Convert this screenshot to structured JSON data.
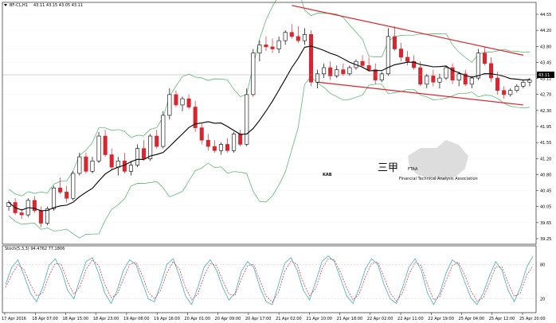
{
  "chart_data": {
    "type": "candlestick",
    "symbol_label": "BF-CL,H1",
    "ohlc_label": "43.11 43.15 43.05 43.11",
    "current_price": "43.11",
    "colors": {
      "bull": "#000000",
      "bear": "#d7262e",
      "ma": "#000000",
      "bands": "#4daf66",
      "channel": "#d7262e",
      "stoch_main": "#48aab8",
      "stoch_signal": "#d7262e"
    },
    "y_ticks": [
      "44.55",
      "44.20",
      "43.80",
      "43.45",
      "43.12",
      "42.70",
      "42.30",
      "41.95",
      "41.55",
      "41.20",
      "40.80",
      "40.45",
      "40.05",
      "39.65",
      "39.25"
    ],
    "ylim": [
      39.25,
      44.85
    ],
    "x_labels": [
      "17 Apr 2016",
      "18 Apr 07:00",
      "18 Apr 15:00",
      "18 Apr 23:00",
      "19 Apr 08:00",
      "19 Apr 16:00",
      "20 Apr 01:00",
      "20 Apr 09:00",
      "20 Apr 17:00",
      "21 Apr 02:00",
      "21 Apr 10:00",
      "21 Apr 18:00",
      "22 Apr 02:00",
      "22 Apr 11:00",
      "22 Apr 19:00",
      "25 Apr 04:00",
      "25 Apr 12:00",
      "25 Apr 20:00"
    ],
    "oscillator": {
      "label": "Stoch(5,3,3) 94.4762 77.1806",
      "y_ticks": [
        "80",
        "20"
      ],
      "ylim": [
        0,
        100
      ],
      "main": [
        45,
        75,
        88,
        60,
        30,
        15,
        40,
        78,
        90,
        70,
        35,
        20,
        55,
        85,
        92,
        65,
        30,
        12,
        35,
        70,
        88,
        80,
        50,
        20,
        15,
        45,
        80,
        90,
        60,
        25,
        10,
        40,
        75,
        88,
        70,
        40,
        18,
        30,
        68,
        85,
        75,
        40,
        15,
        10,
        45,
        82,
        92,
        70,
        35,
        18,
        50,
        85,
        95,
        85,
        55,
        25,
        12,
        38,
        72,
        90,
        80,
        45,
        20,
        12,
        40,
        75,
        90,
        70,
        30,
        10,
        30,
        65,
        88,
        80,
        50,
        22,
        10,
        30,
        60,
        85,
        70,
        35,
        15,
        40,
        75,
        94
      ],
      "signal": [
        40,
        62,
        80,
        70,
        45,
        25,
        30,
        60,
        82,
        80,
        50,
        28,
        42,
        72,
        88,
        78,
        45,
        22,
        28,
        55,
        80,
        84,
        62,
        32,
        20,
        35,
        65,
        85,
        72,
        40,
        18,
        28,
        60,
        82,
        78,
        52,
        28,
        26,
        55,
        78,
        80,
        52,
        25,
        14,
        32,
        68,
        86,
        80,
        48,
        25,
        38,
        72,
        90,
        88,
        66,
        38,
        18,
        28,
        58,
        82,
        84,
        58,
        30,
        16,
        30,
        62,
        84,
        78,
        45,
        18,
        24,
        52,
        78,
        84,
        62,
        34,
        16,
        22,
        48,
        76,
        76,
        48,
        24,
        30,
        62,
        77
      ]
    },
    "candles": [
      [
        40.1,
        40.25,
        40.0,
        40.2
      ],
      [
        40.2,
        40.3,
        39.9,
        39.95
      ],
      [
        39.95,
        40.05,
        39.8,
        39.9
      ],
      [
        39.9,
        40.3,
        39.85,
        40.25
      ],
      [
        40.25,
        40.35,
        39.95,
        40.0
      ],
      [
        40.0,
        40.1,
        39.6,
        39.7
      ],
      [
        39.7,
        40.1,
        39.65,
        40.05
      ],
      [
        40.05,
        40.6,
        40.0,
        40.55
      ],
      [
        40.55,
        40.8,
        40.4,
        40.45
      ],
      [
        40.45,
        40.6,
        40.2,
        40.3
      ],
      [
        40.3,
        40.95,
        40.25,
        40.9
      ],
      [
        40.9,
        41.4,
        40.85,
        41.3
      ],
      [
        41.3,
        41.4,
        40.9,
        40.95
      ],
      [
        40.95,
        41.3,
        40.9,
        41.2
      ],
      [
        41.2,
        41.9,
        41.15,
        41.8
      ],
      [
        41.8,
        41.95,
        41.3,
        41.35
      ],
      [
        41.35,
        41.5,
        41.0,
        41.05
      ],
      [
        41.05,
        41.3,
        40.85,
        41.2
      ],
      [
        41.2,
        41.4,
        40.9,
        40.95
      ],
      [
        40.95,
        41.2,
        40.85,
        41.1
      ],
      [
        41.1,
        41.6,
        41.05,
        41.5
      ],
      [
        41.5,
        41.7,
        41.2,
        41.25
      ],
      [
        41.25,
        41.85,
        41.2,
        41.8
      ],
      [
        41.8,
        41.95,
        41.5,
        41.55
      ],
      [
        41.55,
        42.4,
        41.5,
        42.3
      ],
      [
        42.3,
        42.95,
        42.2,
        42.8
      ],
      [
        42.8,
        42.9,
        42.5,
        42.55
      ],
      [
        42.55,
        42.75,
        42.4,
        42.7
      ],
      [
        42.7,
        42.8,
        42.45,
        42.5
      ],
      [
        42.5,
        42.65,
        41.9,
        42.0
      ],
      [
        42.0,
        42.1,
        41.6,
        41.7
      ],
      [
        41.7,
        41.85,
        41.45,
        41.55
      ],
      [
        41.55,
        41.7,
        41.4,
        41.45
      ],
      [
        41.45,
        41.65,
        41.35,
        41.6
      ],
      [
        41.6,
        41.75,
        41.4,
        41.45
      ],
      [
        41.45,
        41.9,
        41.4,
        41.85
      ],
      [
        41.85,
        41.95,
        41.55,
        41.6
      ],
      [
        41.6,
        42.95,
        41.55,
        42.8
      ],
      [
        42.8,
        43.9,
        42.75,
        43.8
      ],
      [
        43.8,
        44.1,
        43.6,
        44.0
      ],
      [
        44.0,
        44.2,
        43.85,
        43.95
      ],
      [
        43.95,
        44.15,
        43.8,
        43.9
      ],
      [
        43.9,
        44.2,
        43.8,
        44.1
      ],
      [
        44.1,
        44.35,
        44.0,
        44.3
      ],
      [
        44.3,
        44.5,
        44.15,
        44.2
      ],
      [
        44.2,
        44.45,
        44.05,
        44.1
      ],
      [
        44.1,
        44.4,
        44.0,
        44.25
      ],
      [
        44.25,
        44.35,
        43.0,
        43.1
      ],
      [
        43.1,
        43.4,
        42.95,
        43.3
      ],
      [
        43.3,
        43.55,
        43.2,
        43.45
      ],
      [
        43.45,
        43.6,
        43.15,
        43.25
      ],
      [
        43.25,
        43.5,
        43.2,
        43.4
      ],
      [
        43.4,
        43.55,
        43.25,
        43.3
      ],
      [
        43.3,
        43.5,
        43.25,
        43.45
      ],
      [
        43.45,
        43.65,
        43.4,
        43.6
      ],
      [
        43.6,
        43.75,
        43.45,
        43.5
      ],
      [
        43.5,
        43.7,
        43.35,
        43.4
      ],
      [
        43.4,
        43.55,
        43.05,
        43.15
      ],
      [
        43.15,
        43.35,
        43.1,
        43.3
      ],
      [
        43.3,
        44.4,
        43.25,
        44.2
      ],
      [
        44.2,
        44.45,
        43.85,
        43.9
      ],
      [
        43.9,
        44.05,
        43.6,
        43.7
      ],
      [
        43.7,
        43.85,
        43.5,
        43.6
      ],
      [
        43.6,
        43.75,
        43.4,
        43.45
      ],
      [
        43.45,
        43.6,
        43.0,
        43.05
      ],
      [
        43.05,
        43.3,
        42.95,
        43.25
      ],
      [
        43.25,
        43.4,
        43.0,
        43.1
      ],
      [
        43.1,
        43.3,
        42.95,
        43.2
      ],
      [
        43.2,
        43.5,
        43.15,
        43.45
      ],
      [
        43.45,
        43.55,
        43.05,
        43.15
      ],
      [
        43.15,
        43.35,
        43.0,
        43.3
      ],
      [
        43.3,
        43.4,
        43.0,
        43.05
      ],
      [
        43.05,
        43.25,
        42.95,
        43.2
      ],
      [
        43.2,
        43.9,
        43.15,
        43.8
      ],
      [
        43.8,
        43.95,
        43.5,
        43.55
      ],
      [
        43.55,
        43.7,
        43.1,
        43.2
      ],
      [
        43.2,
        43.35,
        42.8,
        42.9
      ],
      [
        42.9,
        43.0,
        42.7,
        42.8
      ],
      [
        42.8,
        42.95,
        42.75,
        42.9
      ],
      [
        42.9,
        43.05,
        42.85,
        43.0
      ],
      [
        43.0,
        43.15,
        42.95,
        43.1
      ],
      [
        43.1,
        43.2,
        43.0,
        43.15
      ]
    ]
  },
  "watermark": {
    "kab": "KAB",
    "kab_glyph": "三甲",
    "ftaa": "FTAA",
    "ftaa_sub": "Financial Technical Analysis Association"
  }
}
